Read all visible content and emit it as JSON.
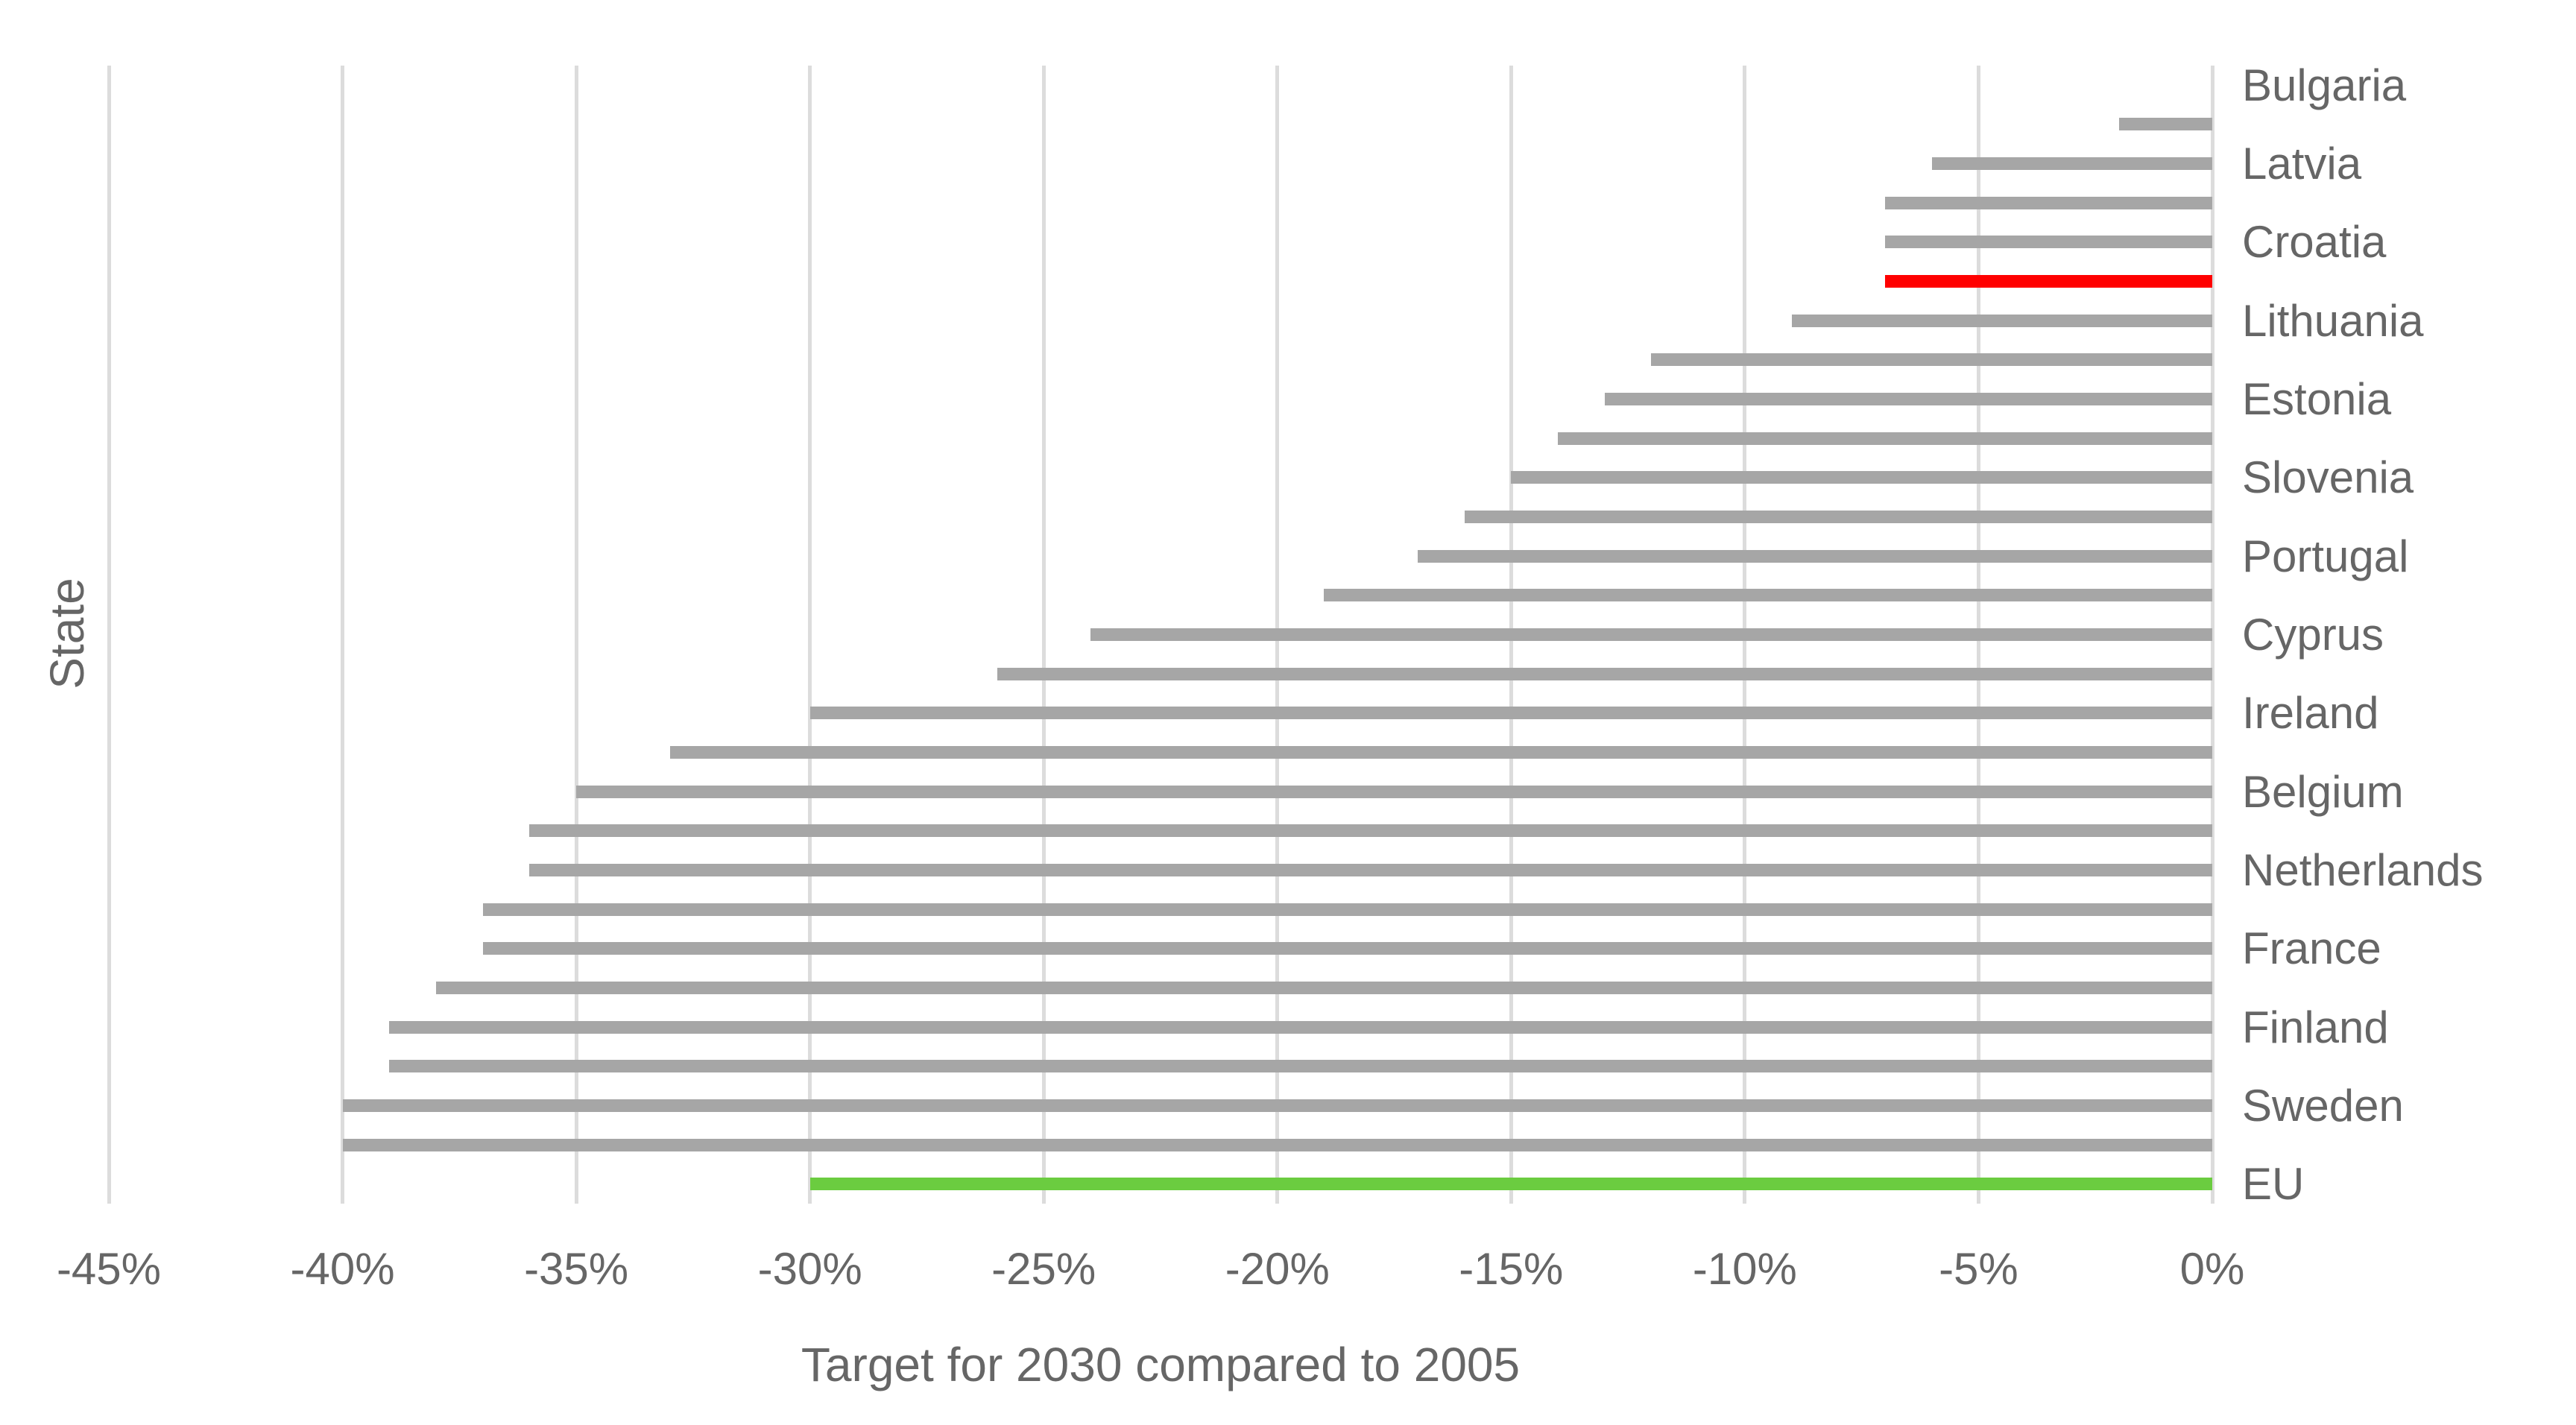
{
  "chart_data": {
    "type": "bar",
    "orientation": "horizontal",
    "xlabel": "Target for 2030 compared to 2005",
    "ylabel": "State",
    "xlim": [
      -45,
      0
    ],
    "grid": true,
    "legend": false,
    "note": "Bars with empty label have no visible category label in the chart; labels are shown for every other bar only.",
    "colors": {
      "default_bar": "#A6A6A6",
      "red_highlight_bar": "#FF0000",
      "green_highlight_bar": "#6BCC40",
      "gridline": "#DCDCDC",
      "text": "#666666",
      "background": "#FFFFFF"
    },
    "x_ticks": [
      {
        "label": "-45%",
        "value": -45
      },
      {
        "label": "-40%",
        "value": -40
      },
      {
        "label": "-35%",
        "value": -35
      },
      {
        "label": "-30%",
        "value": -30
      },
      {
        "label": "-25%",
        "value": -25
      },
      {
        "label": "-20%",
        "value": -20
      },
      {
        "label": "-15%",
        "value": -15
      },
      {
        "label": "-10%",
        "value": -10
      },
      {
        "label": "-5%",
        "value": -5
      },
      {
        "label": "0%",
        "value": 0
      }
    ],
    "bars": [
      {
        "label": "Bulgaria",
        "value": 0,
        "color": "#A6A6A6"
      },
      {
        "label": "",
        "value": -2,
        "color": "#A6A6A6"
      },
      {
        "label": "Latvia",
        "value": -6,
        "color": "#A6A6A6"
      },
      {
        "label": "",
        "value": -7,
        "color": "#A6A6A6"
      },
      {
        "label": "Croatia",
        "value": -7,
        "color": "#A6A6A6"
      },
      {
        "label": "",
        "value": -7,
        "color": "#FF0000"
      },
      {
        "label": "Lithuania",
        "value": -9,
        "color": "#A6A6A6"
      },
      {
        "label": "",
        "value": -12,
        "color": "#A6A6A6"
      },
      {
        "label": "Estonia",
        "value": -13,
        "color": "#A6A6A6"
      },
      {
        "label": "",
        "value": -14,
        "color": "#A6A6A6"
      },
      {
        "label": "Slovenia",
        "value": -15,
        "color": "#A6A6A6"
      },
      {
        "label": "",
        "value": -16,
        "color": "#A6A6A6"
      },
      {
        "label": "Portugal",
        "value": -17,
        "color": "#A6A6A6"
      },
      {
        "label": "",
        "value": -19,
        "color": "#A6A6A6"
      },
      {
        "label": "Cyprus",
        "value": -24,
        "color": "#A6A6A6"
      },
      {
        "label": "",
        "value": -26,
        "color": "#A6A6A6"
      },
      {
        "label": "Ireland",
        "value": -30,
        "color": "#A6A6A6"
      },
      {
        "label": "",
        "value": -33,
        "color": "#A6A6A6"
      },
      {
        "label": "Belgium",
        "value": -35,
        "color": "#A6A6A6"
      },
      {
        "label": "",
        "value": -36,
        "color": "#A6A6A6"
      },
      {
        "label": "Netherlands",
        "value": -36,
        "color": "#A6A6A6"
      },
      {
        "label": "",
        "value": -37,
        "color": "#A6A6A6"
      },
      {
        "label": "France",
        "value": -37,
        "color": "#A6A6A6"
      },
      {
        "label": "",
        "value": -38,
        "color": "#A6A6A6"
      },
      {
        "label": "Finland",
        "value": -39,
        "color": "#A6A6A6"
      },
      {
        "label": "",
        "value": -39,
        "color": "#A6A6A6"
      },
      {
        "label": "Sweden",
        "value": -40,
        "color": "#A6A6A6"
      },
      {
        "label": "",
        "value": -40,
        "color": "#A6A6A6"
      },
      {
        "label": "EU",
        "value": -30,
        "color": "#6BCC40"
      }
    ]
  }
}
